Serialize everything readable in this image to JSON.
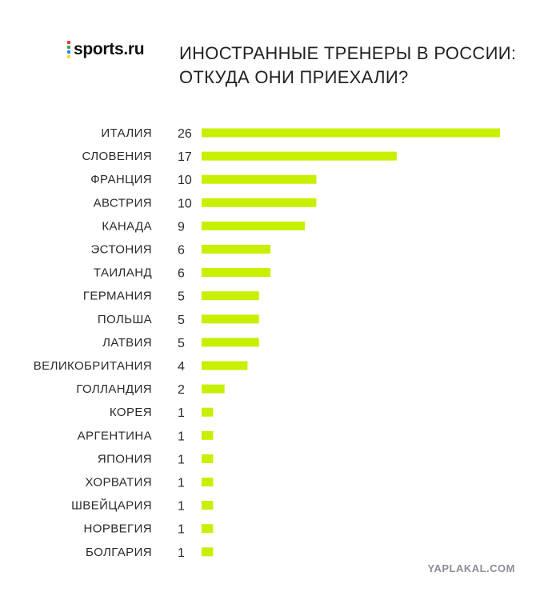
{
  "logo": {
    "text": "sports.ru",
    "dot_colors": [
      "#e53935",
      "#43a047",
      "#1e88e5",
      "#fdd835"
    ]
  },
  "title": {
    "line1": "ИНОСТРАННЫЕ ТРЕНЕРЫ В РОССИИ:",
    "line2": "ОТКУДА ОНИ ПРИЕХАЛИ?"
  },
  "watermark": "YAPLAKAL.COM",
  "colors": {
    "bar": "#c6f000",
    "text": "#2a2a2a"
  },
  "chart_data": {
    "type": "bar",
    "orientation": "horizontal",
    "title": "ИНОСТРАННЫЕ ТРЕНЕРЫ В РОССИИ: ОТКУДА ОНИ ПРИЕХАЛИ?",
    "categories": [
      "ИТАЛИЯ",
      "СЛОВЕНИЯ",
      "ФРАНЦИЯ",
      "АВСТРИЯ",
      "КАНАДА",
      "ЭСТОНИЯ",
      "ТАИЛАНД",
      "ГЕРМАНИЯ",
      "ПОЛЬША",
      "ЛАТВИЯ",
      "ВЕЛИКОБРИТАНИЯ",
      "ГОЛЛАНДИЯ",
      "КОРЕЯ",
      "АРГЕНТИНА",
      "ЯПОНИЯ",
      "ХОРВАТИЯ",
      "ШВЕЙЦАРИЯ",
      "НОРВЕГИЯ",
      "БОЛГАРИЯ"
    ],
    "values": [
      26,
      17,
      10,
      10,
      9,
      6,
      6,
      5,
      5,
      5,
      4,
      2,
      1,
      1,
      1,
      1,
      1,
      1,
      1
    ],
    "xlim": [
      0,
      26
    ],
    "grid": false,
    "legend": "none",
    "data_labels": true
  }
}
